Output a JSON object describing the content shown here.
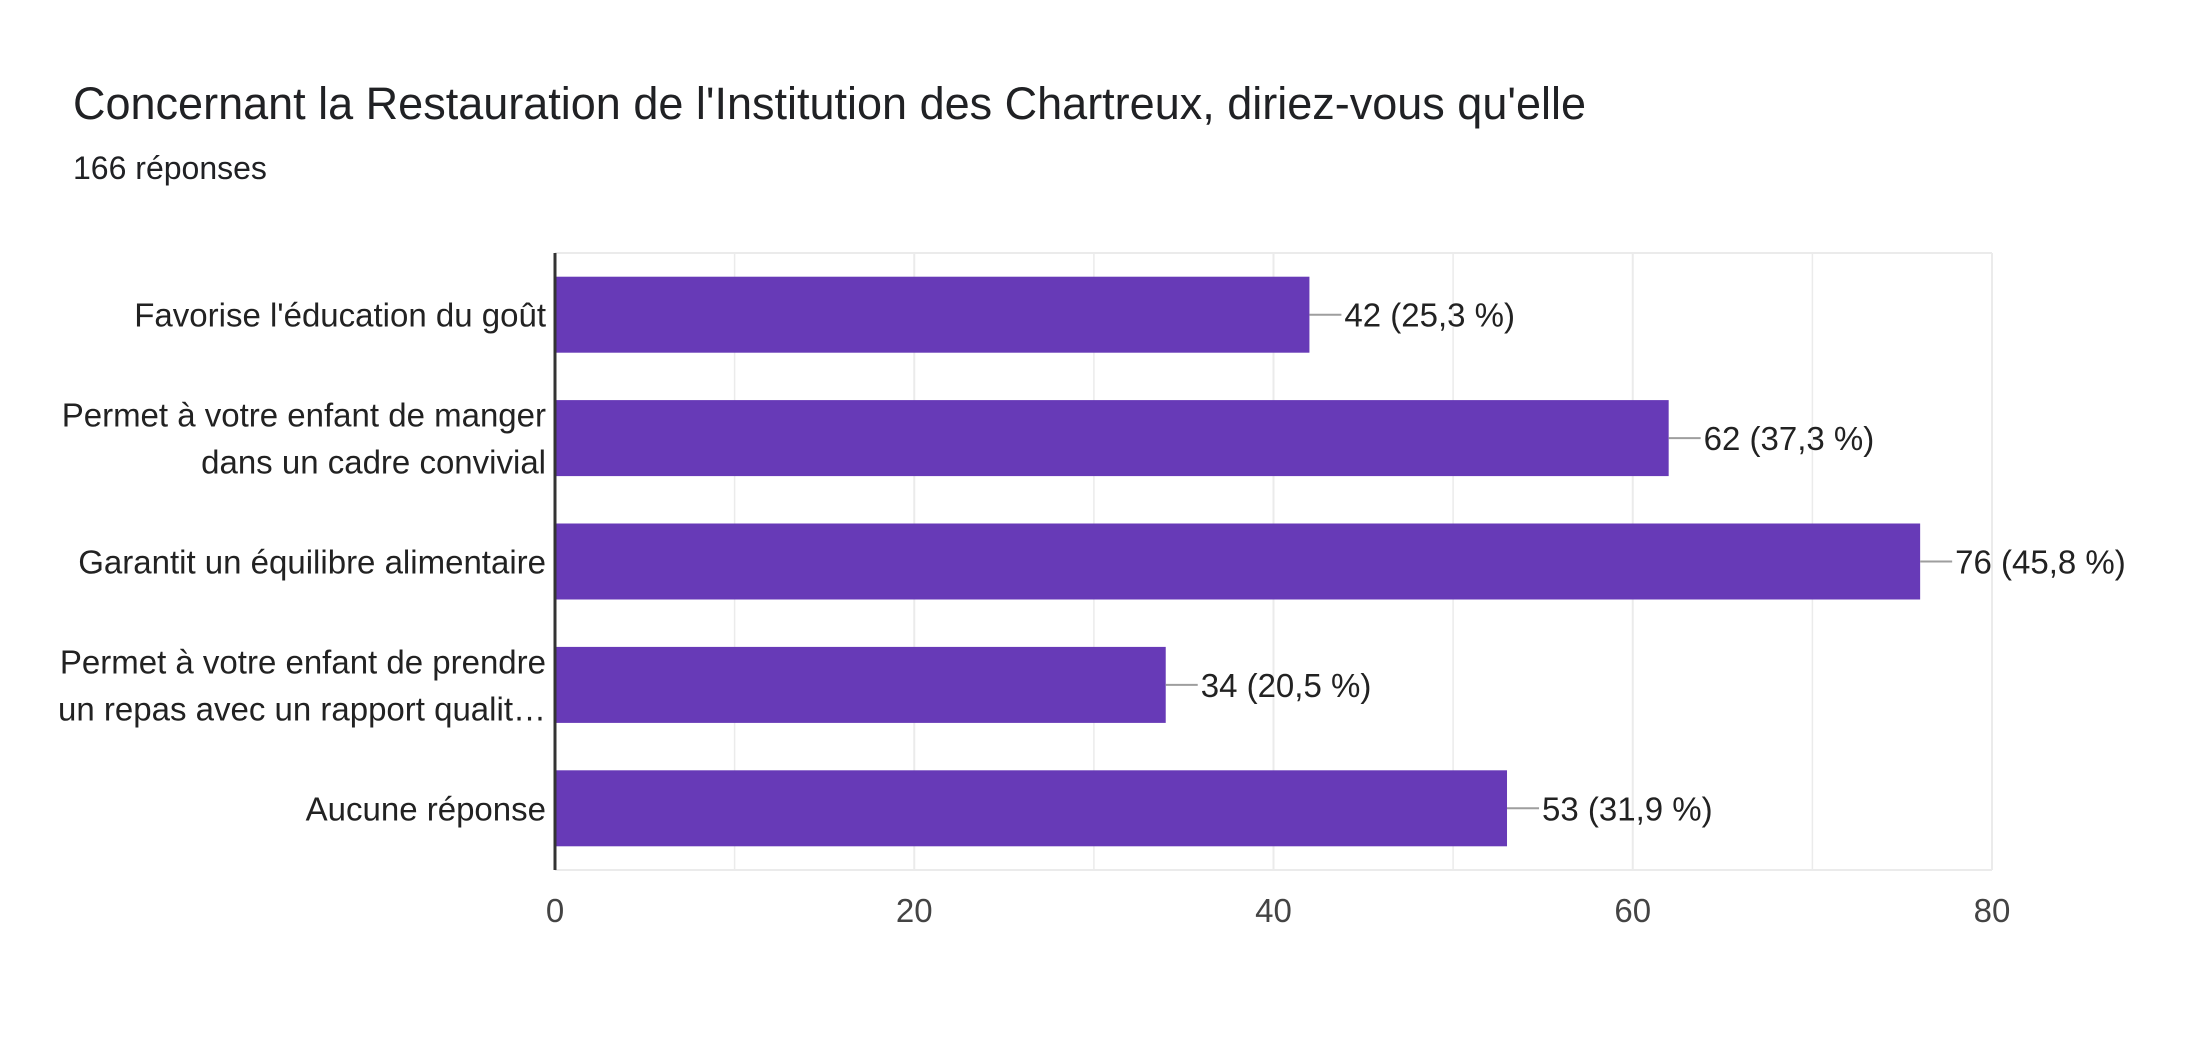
{
  "form": {
    "question": "Concernant la Restauration de l'Institution des Chartreux, diriez-vous qu'elle",
    "responses": "166 réponses"
  },
  "colors": {
    "bar": "#673ab7",
    "axis": "#333333",
    "grid": "#ebebeb",
    "leader": "#9e9e9e"
  },
  "chart_data": {
    "type": "bar",
    "orientation": "horizontal",
    "categories": [
      [
        "Favorise l'éducation du goût"
      ],
      [
        "Permet à votre enfant de manger",
        "dans un cadre convivial"
      ],
      [
        "Garantit un équilibre alimentaire"
      ],
      [
        "Permet à votre enfant de prendre",
        "un repas avec un rapport qualit…"
      ],
      [
        "Aucune réponse"
      ]
    ],
    "values": [
      42,
      62,
      76,
      34,
      53
    ],
    "data_labels": [
      "42 (25,3 %)",
      "62 (37,3 %)",
      "76 (45,8 %)",
      "34 (20,5 %)",
      "53 (31,9 %)"
    ],
    "xlim": [
      0,
      80
    ],
    "x_ticks": [
      0,
      20,
      40,
      60,
      80
    ],
    "grid": true,
    "legend": false
  }
}
